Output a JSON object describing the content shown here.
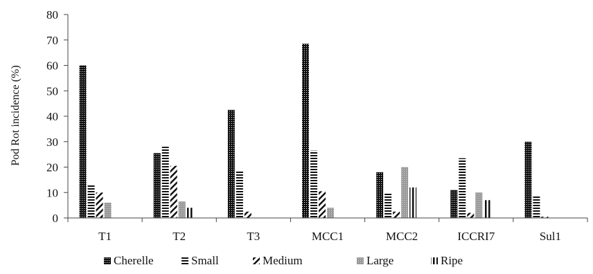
{
  "chart_data": {
    "type": "bar",
    "title": "",
    "xlabel": "",
    "ylabel": "Pod Rot incidence (%)",
    "ylim": [
      0,
      80
    ],
    "yticks": [
      0,
      10,
      20,
      30,
      40,
      50,
      60,
      70,
      80
    ],
    "grid": false,
    "legend_position": "bottom",
    "categories": [
      "T1",
      "T2",
      "T3",
      "MCC1",
      "MCC2",
      "ICCRI7",
      "Sul1"
    ],
    "series": [
      {
        "name": "Cherelle",
        "pattern": "dots-dark",
        "values": [
          60,
          25.5,
          42.5,
          68.5,
          18,
          11,
          30
        ]
      },
      {
        "name": "Small",
        "pattern": "horizontal-lines",
        "values": [
          13,
          28,
          18.5,
          26.5,
          10,
          23.5,
          8.5
        ]
      },
      {
        "name": "Medium",
        "pattern": "diagonal-lines",
        "values": [
          10,
          20.5,
          2.5,
          10.5,
          2.5,
          2,
          0.5
        ]
      },
      {
        "name": "Large",
        "pattern": "dots-gray",
        "values": [
          6,
          6.5,
          0,
          4,
          20,
          10,
          0
        ]
      },
      {
        "name": "Ripe",
        "pattern": "vertical-lines",
        "values": [
          0,
          4,
          0,
          0,
          12,
          7,
          0
        ]
      }
    ]
  }
}
